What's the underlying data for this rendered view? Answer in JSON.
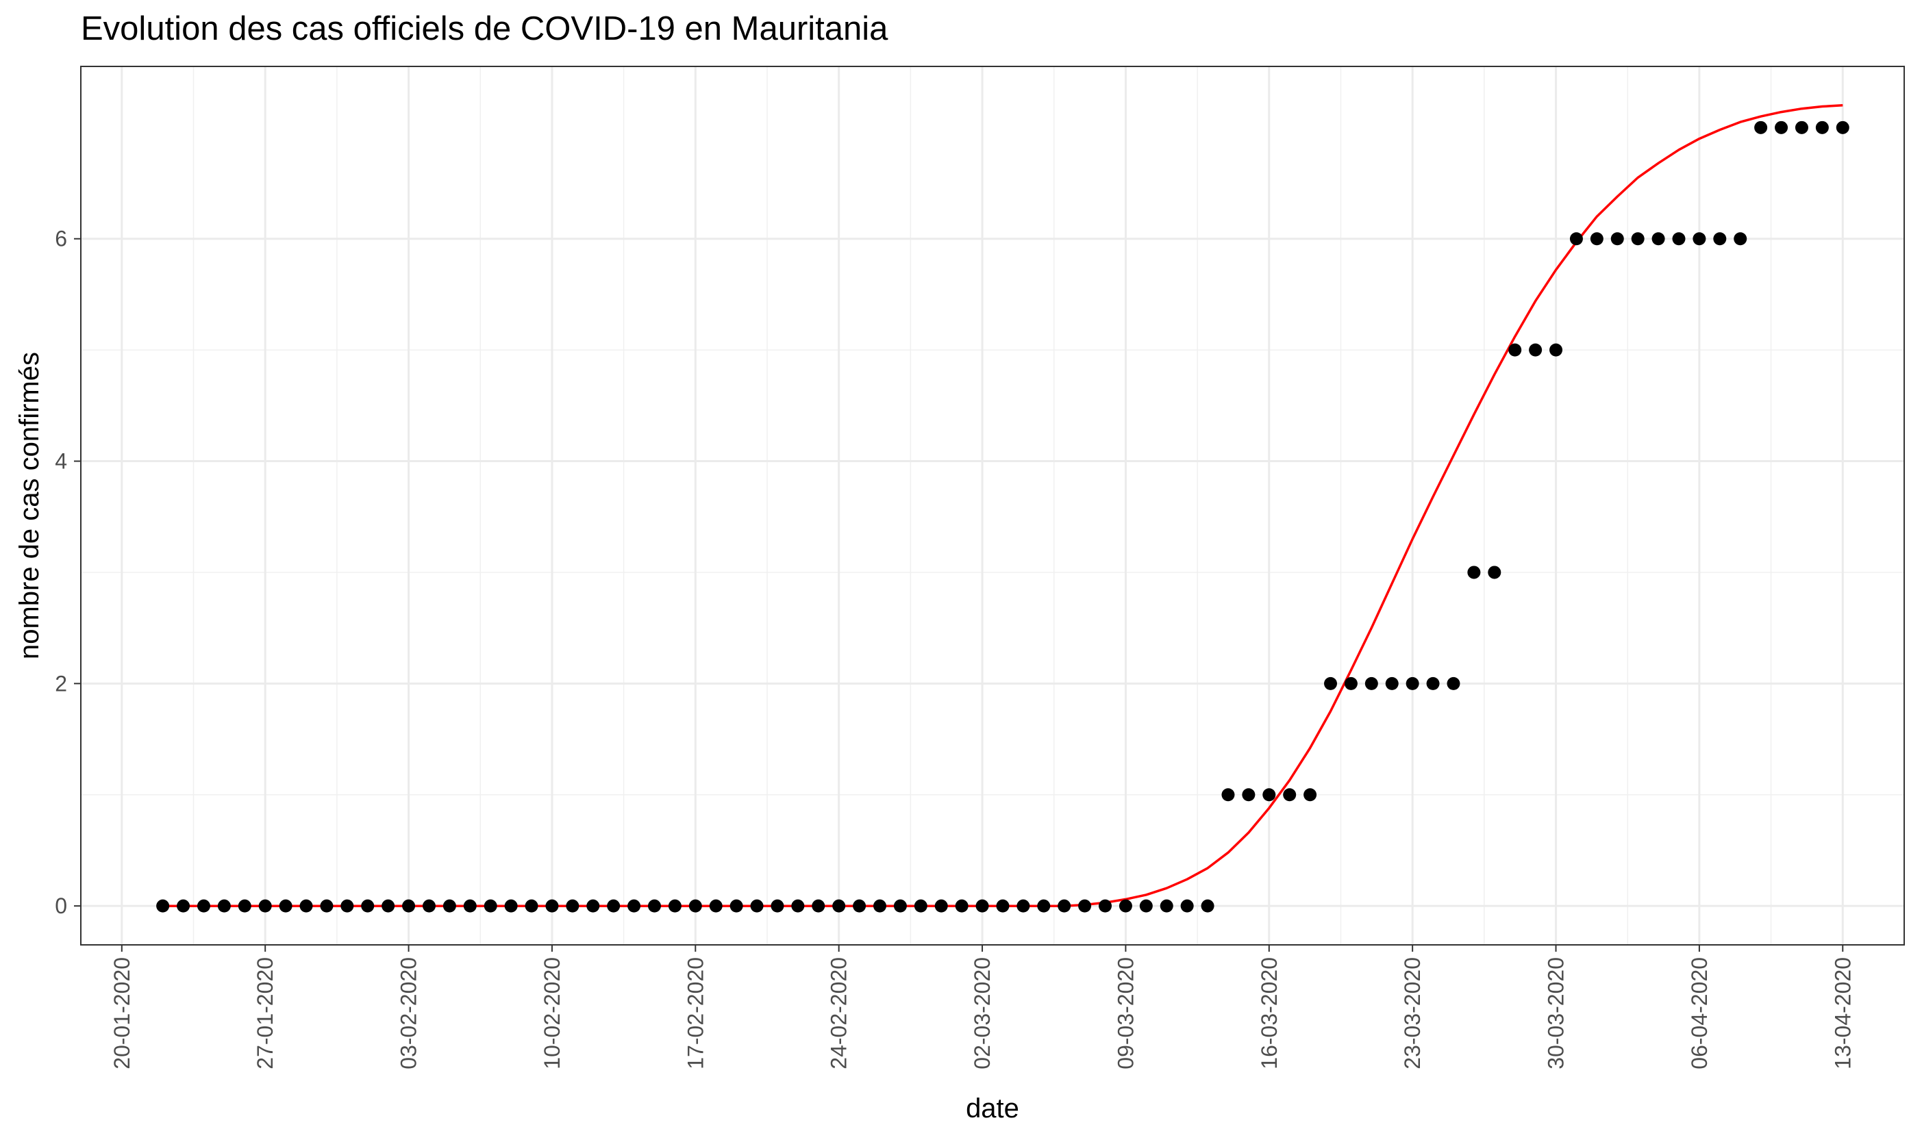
{
  "chart_data": {
    "type": "scatter",
    "title": "Evolution des cas officiels de COVID-19 en Mauritania",
    "xlabel": "date",
    "ylabel": "nombre de cas confirmés",
    "x_start": "22-01-2020",
    "x_ticks": [
      "20-01-2020",
      "27-01-2020",
      "03-02-2020",
      "10-02-2020",
      "17-02-2020",
      "24-02-2020",
      "02-03-2020",
      "09-03-2020",
      "16-03-2020",
      "23-03-2020",
      "30-03-2020",
      "06-04-2020",
      "13-04-2020"
    ],
    "y_ticks": [
      0,
      2,
      4,
      6
    ],
    "xlim": [
      "18-01-2020",
      "16-04-2020"
    ],
    "ylim": [
      -0.35,
      7.55
    ],
    "grid": true,
    "points_color": "#000000",
    "fit_color": "#ff0000",
    "series": [
      {
        "values": [
          0,
          0,
          0,
          0,
          0,
          0,
          0,
          0,
          0,
          0,
          0,
          0,
          0,
          0,
          0,
          0,
          0,
          0,
          0,
          0,
          0,
          0,
          0,
          0,
          0,
          0,
          0,
          0,
          0,
          0,
          0,
          0,
          0,
          0,
          0,
          0,
          0,
          0,
          0,
          0,
          0,
          0,
          0,
          0,
          0,
          0,
          0,
          0,
          0,
          0,
          0,
          0,
          1,
          1,
          1,
          1,
          1,
          2,
          2,
          2,
          2,
          2,
          2,
          2,
          3,
          3,
          5,
          5,
          5,
          6,
          6,
          6,
          6,
          6,
          6,
          6,
          6,
          6,
          7,
          7,
          7,
          7,
          7
        ]
      }
    ],
    "fit": {
      "values": [
        0,
        0,
        0,
        0,
        0,
        0,
        0,
        0,
        0,
        0,
        0,
        0,
        0,
        0,
        0,
        0,
        0,
        0,
        0,
        0,
        0,
        0,
        0,
        0,
        0,
        0,
        0,
        0,
        0,
        0,
        0,
        0,
        0,
        0,
        0,
        0,
        0,
        0,
        0,
        0,
        0,
        0,
        0,
        0,
        0,
        0.01,
        0.03,
        0.06,
        0.1,
        0.16,
        0.24,
        0.34,
        0.48,
        0.66,
        0.88,
        1.13,
        1.42,
        1.75,
        2.12,
        2.5,
        2.9,
        3.3,
        3.68,
        4.05,
        4.42,
        4.78,
        5.12,
        5.44,
        5.72,
        5.97,
        6.2,
        6.38,
        6.55,
        6.68,
        6.8,
        6.9,
        6.98,
        7.05,
        7.1,
        7.14,
        7.17,
        7.19,
        7.2
      ]
    }
  }
}
